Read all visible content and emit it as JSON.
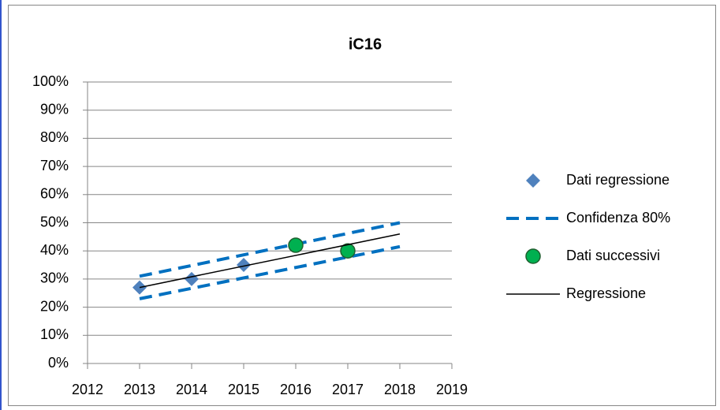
{
  "chart_data": {
    "type": "scatter",
    "title": "iC16",
    "xlim": [
      2012,
      2019
    ],
    "xticks": [
      2012,
      2013,
      2014,
      2015,
      2016,
      2017,
      2018,
      2019
    ],
    "ylim": [
      0,
      100
    ],
    "yticks": [
      {
        "value": 0,
        "label": "0%"
      },
      {
        "value": 10,
        "label": "10%"
      },
      {
        "value": 20,
        "label": "20%"
      },
      {
        "value": 30,
        "label": "30%"
      },
      {
        "value": 40,
        "label": "40%"
      },
      {
        "value": 50,
        "label": "50%"
      },
      {
        "value": 60,
        "label": "60%"
      },
      {
        "value": 70,
        "label": "70%"
      },
      {
        "value": 80,
        "label": "80%"
      },
      {
        "value": 90,
        "label": "90%"
      },
      {
        "value": 100,
        "label": "100%"
      }
    ],
    "grid": true,
    "legend": "right",
    "series": [
      {
        "name": "Dati regressione",
        "color": "#4f81bd",
        "marker": "diamond",
        "x": [
          2013,
          2014,
          2015
        ],
        "values": [
          27,
          30,
          35
        ]
      },
      {
        "name": "Confidenza 80%",
        "color": "#0070c0",
        "style": "dashed",
        "x": [
          2013,
          2018
        ],
        "values": [
          31,
          50
        ],
        "lower": [
          23,
          41.5
        ]
      },
      {
        "name": "Dati successivi",
        "color": "#00b050",
        "marker": "circle",
        "x": [
          2016,
          2017
        ],
        "values": [
          42,
          40
        ]
      },
      {
        "name": "Regressione",
        "color": "#000000",
        "style": "solid",
        "x": [
          2013,
          2018
        ],
        "values": [
          27,
          46
        ]
      }
    ]
  }
}
